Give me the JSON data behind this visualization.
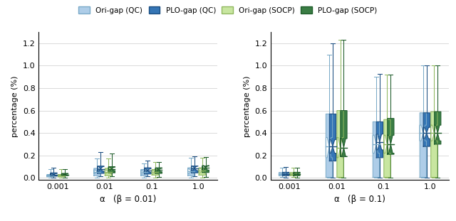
{
  "categories": [
    "0.001",
    "0.01",
    "0.1",
    "1.0"
  ],
  "xlabel_left": "α   (β = 0.01)",
  "xlabel_right": "α   (β = 0.1)",
  "ylabel": "percentage (%)",
  "yticks": [
    0.0,
    0.2,
    0.4,
    0.6,
    0.8,
    1.0,
    1.2
  ],
  "ylim": [
    -0.02,
    1.3
  ],
  "legend_labels": [
    "Ori-gap (QC)",
    "PLO-gap (QC)",
    "Ori-gap (SOCP)",
    "PLO-gap (SOCP)"
  ],
  "color_ori_qc": "#aecde8",
  "color_plo_qc": "#3575b5",
  "color_ori_socp": "#c8e6a0",
  "color_plo_socp": "#3a7d44",
  "left": {
    "ori_qc": {
      "wlo": [
        0.003,
        0.003,
        0.003,
        0.003
      ],
      "q1": [
        0.01,
        0.02,
        0.02,
        0.02
      ],
      "nl": [
        0.015,
        0.04,
        0.035,
        0.04
      ],
      "med": [
        0.02,
        0.055,
        0.05,
        0.06
      ],
      "nh": [
        0.025,
        0.07,
        0.065,
        0.08
      ],
      "q3": [
        0.03,
        0.085,
        0.075,
        0.09
      ],
      "whi": [
        0.075,
        0.175,
        0.13,
        0.18
      ]
    },
    "plo_qc": {
      "wlo": [
        0.003,
        0.015,
        0.015,
        0.015
      ],
      "q1": [
        0.015,
        0.04,
        0.035,
        0.045
      ],
      "nl": [
        0.022,
        0.06,
        0.05,
        0.065
      ],
      "med": [
        0.03,
        0.08,
        0.065,
        0.085
      ],
      "nh": [
        0.038,
        0.1,
        0.08,
        0.105
      ],
      "q3": [
        0.045,
        0.105,
        0.09,
        0.105
      ],
      "whi": [
        0.09,
        0.23,
        0.155,
        0.19
      ]
    },
    "ori_socp": {
      "wlo": [
        0.003,
        0.003,
        0.003,
        0.003
      ],
      "q1": [
        0.01,
        0.02,
        0.025,
        0.025
      ],
      "nl": [
        0.015,
        0.04,
        0.035,
        0.045
      ],
      "med": [
        0.02,
        0.055,
        0.05,
        0.065
      ],
      "nh": [
        0.025,
        0.07,
        0.065,
        0.085
      ],
      "q3": [
        0.03,
        0.085,
        0.075,
        0.09
      ],
      "whi": [
        0.075,
        0.175,
        0.14,
        0.18
      ]
    },
    "plo_socp": {
      "wlo": [
        0.003,
        0.015,
        0.01,
        0.01
      ],
      "q1": [
        0.02,
        0.045,
        0.04,
        0.048
      ],
      "nl": [
        0.025,
        0.065,
        0.055,
        0.07
      ],
      "med": [
        0.03,
        0.08,
        0.07,
        0.09
      ],
      "nh": [
        0.035,
        0.095,
        0.085,
        0.11
      ],
      "q3": [
        0.04,
        0.1,
        0.09,
        0.105
      ],
      "whi": [
        0.08,
        0.22,
        0.14,
        0.185
      ]
    }
  },
  "right": {
    "ori_qc": {
      "wlo": [
        0.008,
        0.005,
        0.005,
        0.005
      ],
      "q1": [
        0.02,
        0.005,
        0.005,
        0.005
      ],
      "nl": [
        0.025,
        0.18,
        0.22,
        0.33
      ],
      "med": [
        0.032,
        0.28,
        0.3,
        0.4
      ],
      "nh": [
        0.04,
        0.36,
        0.38,
        0.47
      ],
      "q3": [
        0.048,
        0.57,
        0.5,
        0.58
      ],
      "whi": [
        0.09,
        1.1,
        0.9,
        1.0
      ]
    },
    "plo_qc": {
      "wlo": [
        0.003,
        0.005,
        0.005,
        0.005
      ],
      "q1": [
        0.02,
        0.15,
        0.18,
        0.28
      ],
      "nl": [
        0.025,
        0.22,
        0.25,
        0.35
      ],
      "med": [
        0.032,
        0.28,
        0.32,
        0.4
      ],
      "nh": [
        0.04,
        0.34,
        0.39,
        0.45
      ],
      "q3": [
        0.05,
        0.57,
        0.5,
        0.58
      ],
      "whi": [
        0.1,
        1.2,
        0.93,
        1.0
      ]
    },
    "ori_socp": {
      "wlo": [
        0.008,
        0.005,
        0.005,
        0.005
      ],
      "q1": [
        0.02,
        0.005,
        0.005,
        0.005
      ],
      "nl": [
        0.025,
        0.18,
        0.22,
        0.33
      ],
      "med": [
        0.032,
        0.27,
        0.3,
        0.4
      ],
      "nh": [
        0.04,
        0.36,
        0.38,
        0.47
      ],
      "q3": [
        0.048,
        0.6,
        0.52,
        0.59
      ],
      "whi": [
        0.09,
        1.23,
        0.92,
        1.0
      ]
    },
    "plo_socp": {
      "wlo": [
        0.003,
        0.005,
        0.005,
        0.005
      ],
      "q1": [
        0.02,
        0.19,
        0.21,
        0.3
      ],
      "nl": [
        0.025,
        0.19,
        0.22,
        0.33
      ],
      "med": [
        0.032,
        0.27,
        0.3,
        0.4
      ],
      "nh": [
        0.04,
        0.35,
        0.38,
        0.47
      ],
      "q3": [
        0.05,
        0.6,
        0.53,
        0.59
      ],
      "whi": [
        0.09,
        1.23,
        0.92,
        1.0
      ]
    }
  }
}
